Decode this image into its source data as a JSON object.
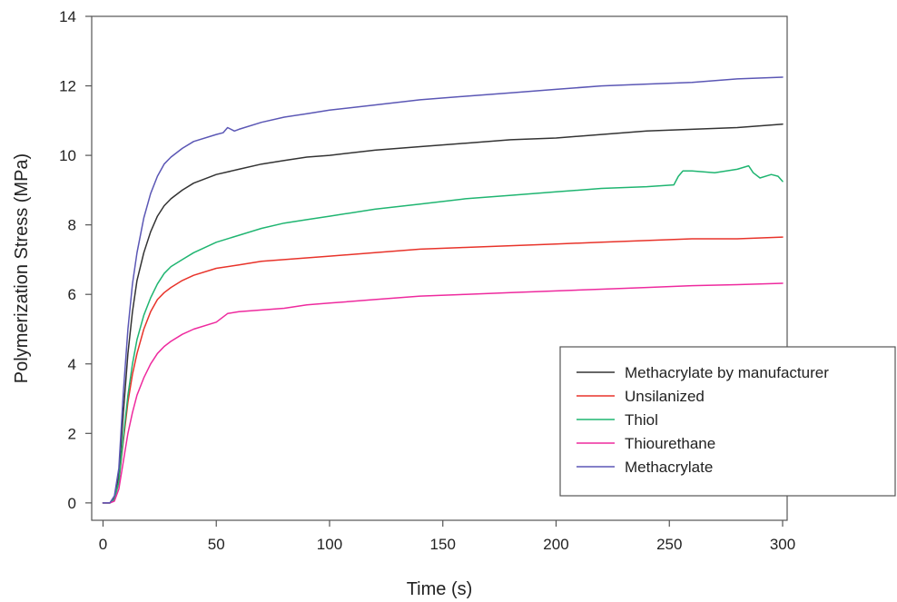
{
  "chart_data": {
    "type": "line",
    "title": "",
    "xlabel": "Time (s)",
    "ylabel": "Polymerization Stress (MPa)",
    "xlim": [
      -5,
      302
    ],
    "ylim": [
      -0.5,
      14
    ],
    "xticks": [
      0,
      50,
      100,
      150,
      200,
      250,
      300
    ],
    "yticks": [
      0,
      2,
      4,
      6,
      8,
      10,
      12,
      14
    ],
    "grid": false,
    "legend_position": "bottom-right",
    "series": [
      {
        "name": "Methacrylate by manufacturer",
        "color": "#333333",
        "x": [
          0,
          3,
          5,
          7,
          9,
          11,
          13,
          15,
          18,
          21,
          24,
          27,
          30,
          35,
          40,
          50,
          60,
          70,
          80,
          90,
          100,
          120,
          140,
          160,
          180,
          200,
          220,
          240,
          260,
          280,
          300
        ],
        "y": [
          0,
          0,
          0.15,
          0.8,
          2.6,
          4.3,
          5.5,
          6.4,
          7.2,
          7.8,
          8.25,
          8.55,
          8.75,
          9.0,
          9.2,
          9.45,
          9.6,
          9.75,
          9.85,
          9.95,
          10.0,
          10.15,
          10.25,
          10.35,
          10.45,
          10.5,
          10.6,
          10.7,
          10.75,
          10.8,
          10.9
        ]
      },
      {
        "name": "Unsilanized",
        "color": "#e8332a",
        "x": [
          0,
          3,
          5,
          7,
          9,
          11,
          13,
          15,
          18,
          21,
          24,
          27,
          30,
          35,
          40,
          50,
          60,
          70,
          80,
          90,
          100,
          120,
          140,
          160,
          180,
          200,
          220,
          240,
          260,
          280,
          300
        ],
        "y": [
          0,
          0,
          0.1,
          0.6,
          1.8,
          2.9,
          3.7,
          4.3,
          5.0,
          5.5,
          5.85,
          6.05,
          6.2,
          6.4,
          6.55,
          6.75,
          6.85,
          6.95,
          7.0,
          7.05,
          7.1,
          7.2,
          7.3,
          7.35,
          7.4,
          7.45,
          7.5,
          7.55,
          7.6,
          7.6,
          7.65
        ]
      },
      {
        "name": "Thiol",
        "color": "#1fb571",
        "x": [
          0,
          3,
          5,
          7,
          9,
          11,
          13,
          15,
          18,
          21,
          24,
          27,
          30,
          35,
          40,
          50,
          60,
          70,
          80,
          90,
          100,
          120,
          140,
          160,
          180,
          200,
          220,
          240,
          252,
          254,
          256,
          260,
          270,
          280,
          285,
          287,
          290,
          295,
          298,
          300
        ],
        "y": [
          0,
          0,
          0.1,
          0.6,
          1.9,
          3.1,
          4.0,
          4.7,
          5.4,
          5.9,
          6.3,
          6.6,
          6.8,
          7.0,
          7.2,
          7.5,
          7.7,
          7.9,
          8.05,
          8.15,
          8.25,
          8.45,
          8.6,
          8.75,
          8.85,
          8.95,
          9.05,
          9.1,
          9.15,
          9.4,
          9.55,
          9.55,
          9.5,
          9.6,
          9.7,
          9.5,
          9.35,
          9.45,
          9.4,
          9.25
        ]
      },
      {
        "name": "Thiourethane",
        "color": "#ee2a9e",
        "x": [
          0,
          3,
          5,
          7,
          9,
          11,
          13,
          15,
          18,
          21,
          24,
          27,
          30,
          35,
          40,
          50,
          55,
          60,
          70,
          80,
          90,
          100,
          120,
          140,
          160,
          180,
          200,
          220,
          240,
          260,
          280,
          300
        ],
        "y": [
          0,
          0,
          0.05,
          0.4,
          1.2,
          2.0,
          2.6,
          3.1,
          3.6,
          4.0,
          4.3,
          4.5,
          4.65,
          4.85,
          5.0,
          5.2,
          5.45,
          5.5,
          5.55,
          5.6,
          5.7,
          5.75,
          5.85,
          5.95,
          6.0,
          6.05,
          6.1,
          6.15,
          6.2,
          6.25,
          6.28,
          6.32
        ]
      },
      {
        "name": "Methacrylate",
        "color": "#5b57b5",
        "x": [
          0,
          3,
          5,
          7,
          9,
          11,
          13,
          15,
          18,
          21,
          24,
          27,
          30,
          35,
          40,
          50,
          53,
          55,
          58,
          60,
          70,
          80,
          90,
          100,
          120,
          140,
          160,
          180,
          200,
          220,
          240,
          260,
          280,
          300
        ],
        "y": [
          0,
          0,
          0.2,
          1.0,
          3.2,
          5.0,
          6.3,
          7.2,
          8.2,
          8.9,
          9.4,
          9.75,
          9.95,
          10.2,
          10.4,
          10.6,
          10.65,
          10.8,
          10.7,
          10.75,
          10.95,
          11.1,
          11.2,
          11.3,
          11.45,
          11.6,
          11.7,
          11.8,
          11.9,
          12.0,
          12.05,
          12.1,
          12.2,
          12.25
        ]
      }
    ]
  }
}
